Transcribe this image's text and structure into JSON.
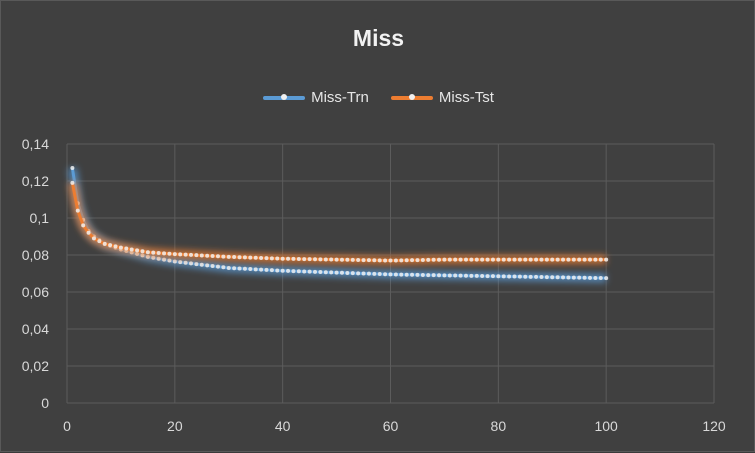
{
  "chart_data": {
    "type": "line",
    "title": "Miss",
    "xlabel": "",
    "ylabel": "",
    "xlim": [
      0,
      120
    ],
    "ylim": [
      0,
      0.14
    ],
    "x_ticks": [
      "0",
      "20",
      "40",
      "60",
      "80",
      "100",
      "120"
    ],
    "y_ticks": [
      "0",
      "0,02",
      "0,04",
      "0,06",
      "0,08",
      "0,1",
      "0,12",
      "0,14"
    ],
    "grid": true,
    "legend_position": "top",
    "series": [
      {
        "name": "Miss-Trn",
        "color": "#5b9bd5",
        "x_start": 1,
        "x_end": 100,
        "key_points": [
          [
            1,
            0.127
          ],
          [
            2,
            0.108
          ],
          [
            3,
            0.099
          ],
          [
            4,
            0.093
          ],
          [
            5,
            0.09
          ],
          [
            7,
            0.086
          ],
          [
            10,
            0.083
          ],
          [
            15,
            0.079
          ],
          [
            20,
            0.0765
          ],
          [
            30,
            0.073
          ],
          [
            40,
            0.0715
          ],
          [
            50,
            0.0705
          ],
          [
            60,
            0.0695
          ],
          [
            70,
            0.069
          ],
          [
            80,
            0.0685
          ],
          [
            90,
            0.068
          ],
          [
            100,
            0.0675
          ]
        ]
      },
      {
        "name": "Miss-Tst",
        "color": "#ed7d31",
        "x_start": 1,
        "x_end": 100,
        "key_points": [
          [
            1,
            0.119
          ],
          [
            2,
            0.104
          ],
          [
            3,
            0.096
          ],
          [
            4,
            0.092
          ],
          [
            5,
            0.089
          ],
          [
            7,
            0.086
          ],
          [
            10,
            0.084
          ],
          [
            15,
            0.0815
          ],
          [
            20,
            0.0805
          ],
          [
            30,
            0.079
          ],
          [
            40,
            0.078
          ],
          [
            50,
            0.0775
          ],
          [
            60,
            0.077
          ],
          [
            70,
            0.0775
          ],
          [
            80,
            0.0775
          ],
          [
            90,
            0.0775
          ],
          [
            100,
            0.0775
          ]
        ]
      }
    ]
  }
}
